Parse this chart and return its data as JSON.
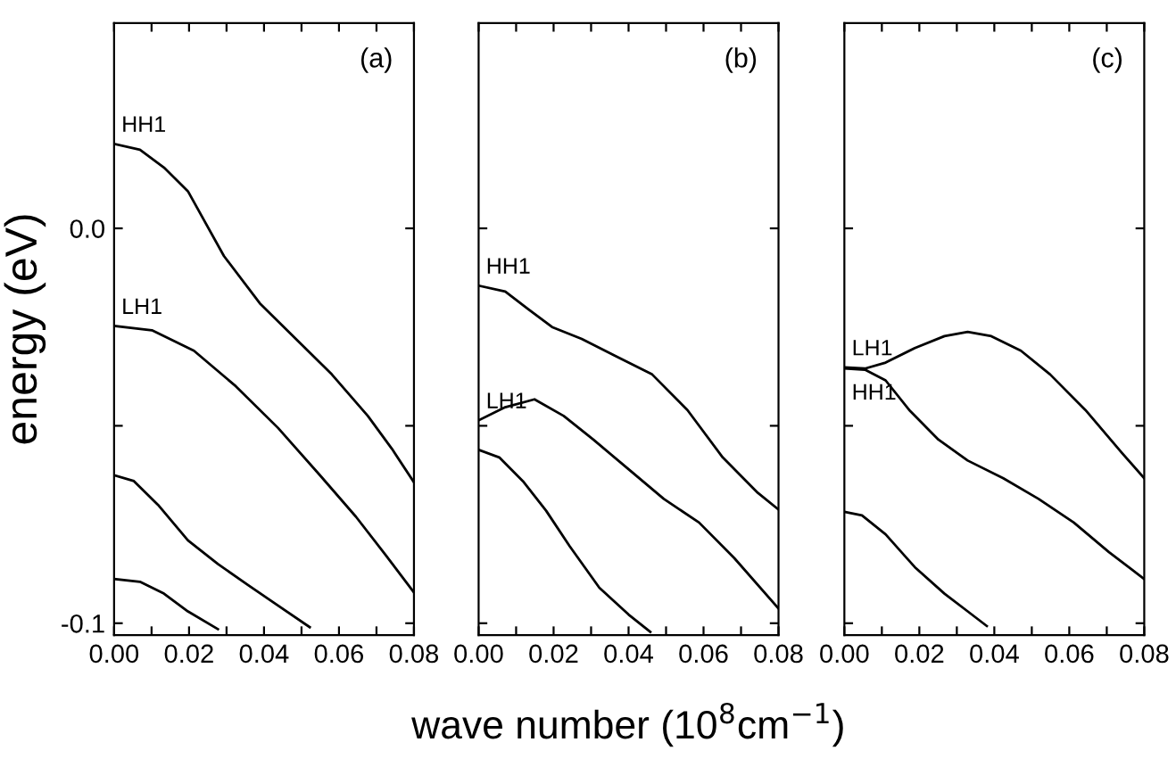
{
  "chart_data": [
    {
      "type": "line",
      "title": "(a)",
      "ylabel": "energy (eV)",
      "xlim": [
        0,
        0.08
      ],
      "ylim": [
        -0.103,
        0.052
      ],
      "xticks": [
        {
          "value": 0,
          "label": "0.00"
        },
        {
          "value": 0.01,
          "label": null
        },
        {
          "value": 0.02,
          "label": "0.02"
        },
        {
          "value": 0.03,
          "label": null
        },
        {
          "value": 0.04,
          "label": "0.04"
        },
        {
          "value": 0.05,
          "label": null
        },
        {
          "value": 0.06,
          "label": "0.06"
        },
        {
          "value": 0.07,
          "label": null
        },
        {
          "value": 0.08,
          "label": "0.08"
        }
      ],
      "yticks": [
        {
          "value": 0,
          "label": "0.0"
        },
        {
          "value": -0.05,
          "label": null
        },
        {
          "value": -0.1,
          "label": "-0.1"
        }
      ],
      "grid": false,
      "legend": false,
      "marker": "none",
      "line_style": "solid",
      "series": [
        {
          "color": "#000000",
          "x": [
            0,
            0.0069,
            0.0133,
            0.0197,
            0.0293,
            0.0389,
            0.0485,
            0.0581,
            0.0677,
            0.0741,
            0.08
          ],
          "values": [
            0.0214,
            0.0199,
            0.0154,
            0.0094,
            -0.007,
            -0.019,
            -0.028,
            -0.037,
            -0.0475,
            -0.0558,
            -0.0643
          ]
        },
        {
          "color": "#000000",
          "x": [
            0,
            0.0101,
            0.0213,
            0.0325,
            0.0437,
            0.0549,
            0.0645,
            0.0725,
            0.08
          ],
          "values": [
            -0.0247,
            -0.0258,
            -0.031,
            -0.04,
            -0.0505,
            -0.0625,
            -0.073,
            -0.0828,
            -0.0922
          ]
        },
        {
          "color": "#000000",
          "x": [
            0,
            0.0053,
            0.0117,
            0.0197,
            0.0277,
            0.0357,
            0.0437,
            0.0522
          ],
          "values": [
            -0.0625,
            -0.064,
            -0.07,
            -0.079,
            -0.085,
            -0.0903,
            -0.0955,
            -0.101
          ]
        },
        {
          "color": "#000000",
          "x": [
            0,
            0.0069,
            0.0133,
            0.0197,
            0.0277
          ],
          "values": [
            -0.0888,
            -0.0895,
            -0.0925,
            -0.097,
            -0.1015
          ]
        }
      ],
      "annotations": [
        "HH1",
        "LH1"
      ]
    },
    {
      "type": "line",
      "title": "(b)",
      "xlabel": "wave number (10$^{8}$cm$^{−1}$)",
      "tick_labels": "x",
      "xlim": [
        0,
        0.08
      ],
      "ylim": [
        -0.103,
        0.052
      ],
      "xticks": [
        {
          "value": 0,
          "label": "0.00"
        },
        {
          "value": 0.01,
          "label": null
        },
        {
          "value": 0.02,
          "label": "0.02"
        },
        {
          "value": 0.03,
          "label": null
        },
        {
          "value": 0.04,
          "label": "0.04"
        },
        {
          "value": 0.05,
          "label": null
        },
        {
          "value": 0.06,
          "label": "0.06"
        },
        {
          "value": 0.07,
          "label": null
        },
        {
          "value": 0.08,
          "label": "0.08"
        }
      ],
      "yticks": [
        0,
        -0.05,
        -0.1
      ],
      "grid": false,
      "legend": false,
      "marker": "none",
      "line_style": "solid",
      "series": [
        {
          "color": "#000000",
          "x": [
            0,
            0.0071,
            0.0133,
            0.0196,
            0.0275,
            0.0369,
            0.0463,
            0.0557,
            0.0651,
            0.0745,
            0.08
          ],
          "values": [
            -0.0145,
            -0.016,
            -0.0205,
            -0.025,
            -0.028,
            -0.0325,
            -0.037,
            -0.046,
            -0.058,
            -0.067,
            -0.0712
          ]
        },
        {
          "color": "#000000",
          "x": [
            0,
            0.0071,
            0.0149,
            0.0227,
            0.0306,
            0.04,
            0.0494,
            0.0588,
            0.0682,
            0.08
          ],
          "values": [
            -0.0486,
            -0.0453,
            -0.0433,
            -0.0475,
            -0.0535,
            -0.061,
            -0.0685,
            -0.0745,
            -0.0835,
            -0.0963
          ]
        },
        {
          "color": "#000000",
          "x": [
            0,
            0.0055,
            0.0118,
            0.018,
            0.0243,
            0.0322,
            0.04,
            0.0458
          ],
          "values": [
            -0.0561,
            -0.058,
            -0.064,
            -0.0715,
            -0.0805,
            -0.091,
            -0.0978,
            -0.1022
          ]
        }
      ],
      "annotations": [
        "HH1",
        "LH1"
      ]
    },
    {
      "type": "line",
      "title": "(c)",
      "tick_labels": "x",
      "xlim": [
        0,
        0.08
      ],
      "ylim": [
        -0.103,
        0.052
      ],
      "xticks": [
        {
          "value": 0,
          "label": "0.00"
        },
        {
          "value": 0.01,
          "label": null
        },
        {
          "value": 0.02,
          "label": "0.02"
        },
        {
          "value": 0.03,
          "label": null
        },
        {
          "value": 0.04,
          "label": "0.04"
        },
        {
          "value": 0.05,
          "label": null
        },
        {
          "value": 0.06,
          "label": "0.06"
        },
        {
          "value": 0.07,
          "label": null
        },
        {
          "value": 0.08,
          "label": "0.08"
        }
      ],
      "yticks": [
        0,
        -0.05,
        -0.1
      ],
      "grid": false,
      "legend": false,
      "marker": "none",
      "line_style": "solid",
      "series": [
        {
          "color": "#000000",
          "x": [
            0,
            0.0055,
            0.011,
            0.0188,
            0.0267,
            0.0329,
            0.0392,
            0.0471,
            0.0549,
            0.0643,
            0.0737,
            0.08
          ],
          "values": [
            -0.0352,
            -0.0355,
            -0.034,
            -0.0303,
            -0.0273,
            -0.0262,
            -0.0273,
            -0.031,
            -0.037,
            -0.046,
            -0.0565,
            -0.0633
          ]
        },
        {
          "color": "#000000",
          "x": [
            0,
            0.0055,
            0.011,
            0.0173,
            0.0251,
            0.0329,
            0.0424,
            0.0518,
            0.0612,
            0.0706,
            0.08
          ],
          "values": [
            -0.0355,
            -0.0358,
            -0.0385,
            -0.046,
            -0.0535,
            -0.0588,
            -0.0633,
            -0.0685,
            -0.0745,
            -0.082,
            -0.0888
          ]
        },
        {
          "color": "#000000",
          "x": [
            0,
            0.0047,
            0.011,
            0.0188,
            0.0267,
            0.0329,
            0.038
          ],
          "values": [
            -0.0718,
            -0.0727,
            -0.0775,
            -0.0858,
            -0.0925,
            -0.097,
            -0.1007
          ]
        }
      ],
      "annotations": [
        "LH1",
        "HH1"
      ]
    }
  ]
}
